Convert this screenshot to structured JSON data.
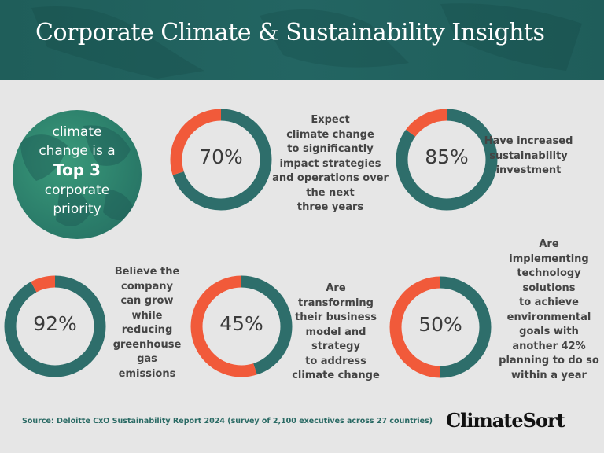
{
  "header": {
    "title": "Corporate Climate & Sustainability Insights"
  },
  "globe": {
    "line1": "climate",
    "line2": "change is a",
    "line3": "Top 3",
    "line4": "corporate",
    "line5": "priority"
  },
  "colors": {
    "primary": "#2e6e6b",
    "accent": "#f15a3a",
    "header": "#1f5e5a",
    "background": "#e6e6e6"
  },
  "chart_data": [
    {
      "type": "pie",
      "variant": "donut",
      "label": "70%",
      "values": [
        70,
        30
      ],
      "description": "Expect\nclimate change\nto significantly\nimpact strategies\nand operations over\nthe next\nthree years"
    },
    {
      "type": "pie",
      "variant": "donut",
      "label": "85%",
      "values": [
        85,
        15
      ],
      "description": "Have increased\nsustainability\ninvestment"
    },
    {
      "type": "pie",
      "variant": "donut",
      "label": "92%",
      "values": [
        92,
        8
      ],
      "description": "Believe the\ncompany\ncan grow\nwhile\nreducing\ngreenhouse\ngas\nemissions"
    },
    {
      "type": "pie",
      "variant": "donut",
      "label": "45%",
      "values": [
        45,
        55
      ],
      "description": "Are\ntransforming\ntheir business\nmodel and\nstrategy\nto address\nclimate change"
    },
    {
      "type": "pie",
      "variant": "donut",
      "label": "50%",
      "values": [
        50,
        50
      ],
      "description": "Are\nimplementing\ntechnology\nsolutions\nto  achieve\nenvironmental\ngoals with\nanother 42%\nplanning to do so\nwithin a year"
    }
  ],
  "footer": {
    "source": "Source: Deloitte CxO Sustainability  Report 2024 (survey of 2,100 executives across 27 countries)",
    "logo": "ClimateSort"
  }
}
